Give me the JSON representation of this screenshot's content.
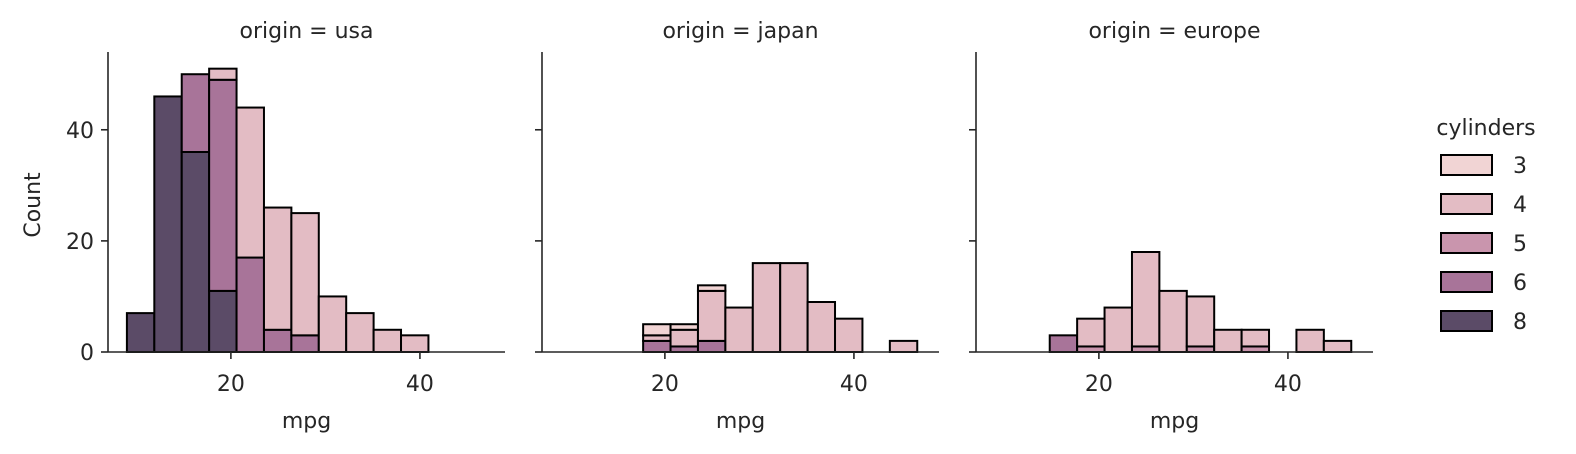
{
  "chart_data": {
    "type": "bar",
    "stacked": true,
    "xlabel": "mpg",
    "ylabel": "Count",
    "xlim": [
      7,
      49
    ],
    "ylim": [
      0,
      54
    ],
    "xticks": [
      20,
      40
    ],
    "yticks": [
      0,
      20,
      40
    ],
    "bins": [
      [
        9.0,
        11.9
      ],
      [
        11.9,
        14.8
      ],
      [
        14.8,
        17.7
      ],
      [
        17.7,
        20.6
      ],
      [
        20.6,
        23.5
      ],
      [
        23.5,
        26.4
      ],
      [
        26.4,
        29.3
      ],
      [
        29.3,
        32.2
      ],
      [
        32.2,
        35.1
      ],
      [
        35.1,
        38.0
      ],
      [
        38.0,
        40.9
      ],
      [
        40.9,
        43.8
      ],
      [
        43.8,
        46.7
      ]
    ],
    "grid": false,
    "legend": {
      "title": "cylinders",
      "position": "right",
      "entries": [
        {
          "label": "3",
          "color": "#f1d4d4"
        },
        {
          "label": "4",
          "color": "#e3bcc4"
        },
        {
          "label": "5",
          "color": "#c995ad"
        },
        {
          "label": "6",
          "color": "#a87499"
        },
        {
          "label": "8",
          "color": "#5b4b67"
        }
      ]
    },
    "panels": [
      {
        "title": "origin = usa",
        "series": [
          {
            "name": "8",
            "values": [
              7,
              46,
              36,
              11,
              0,
              0,
              0,
              0,
              0,
              0,
              0,
              0,
              0
            ]
          },
          {
            "name": "6",
            "values": [
              0,
              0,
              14,
              38,
              17,
              4,
              3,
              0,
              0,
              0,
              0,
              0,
              0
            ]
          },
          {
            "name": "5",
            "values": [
              0,
              0,
              0,
              0,
              0,
              0,
              0,
              0,
              0,
              0,
              0,
              0,
              0
            ]
          },
          {
            "name": "4",
            "values": [
              0,
              0,
              0,
              2,
              27,
              22,
              22,
              10,
              7,
              4,
              3,
              0,
              0
            ]
          },
          {
            "name": "3",
            "values": [
              0,
              0,
              0,
              0,
              0,
              0,
              0,
              0,
              0,
              0,
              0,
              0,
              0
            ]
          }
        ]
      },
      {
        "title": "origin = japan",
        "series": [
          {
            "name": "8",
            "values": [
              0,
              0,
              0,
              0,
              0,
              0,
              0,
              0,
              0,
              0,
              0,
              0,
              0
            ]
          },
          {
            "name": "6",
            "values": [
              0,
              0,
              0,
              2,
              1,
              2,
              0,
              0,
              0,
              0,
              0,
              0,
              0
            ]
          },
          {
            "name": "5",
            "values": [
              0,
              0,
              0,
              0,
              0,
              0,
              0,
              0,
              0,
              0,
              0,
              0,
              0
            ]
          },
          {
            "name": "4",
            "values": [
              0,
              0,
              0,
              1,
              3,
              9,
              8,
              16,
              16,
              9,
              6,
              0,
              2
            ]
          },
          {
            "name": "3",
            "values": [
              0,
              0,
              0,
              2,
              1,
              1,
              0,
              0,
              0,
              0,
              0,
              0,
              0
            ]
          }
        ]
      },
      {
        "title": "origin = europe",
        "series": [
          {
            "name": "8",
            "values": [
              0,
              0,
              0,
              0,
              0,
              0,
              0,
              0,
              0,
              0,
              0,
              0,
              0
            ]
          },
          {
            "name": "6",
            "values": [
              0,
              0,
              3,
              0,
              0,
              0,
              0,
              0,
              0,
              0,
              0,
              0,
              0
            ]
          },
          {
            "name": "5",
            "values": [
              0,
              0,
              0,
              1,
              0,
              1,
              0,
              1,
              0,
              1,
              0,
              0,
              0
            ]
          },
          {
            "name": "4",
            "values": [
              0,
              0,
              0,
              5,
              8,
              17,
              11,
              9,
              4,
              3,
              0,
              4,
              2
            ]
          },
          {
            "name": "3",
            "values": [
              0,
              0,
              0,
              0,
              0,
              0,
              0,
              0,
              0,
              0,
              0,
              0,
              0
            ]
          }
        ]
      }
    ]
  }
}
